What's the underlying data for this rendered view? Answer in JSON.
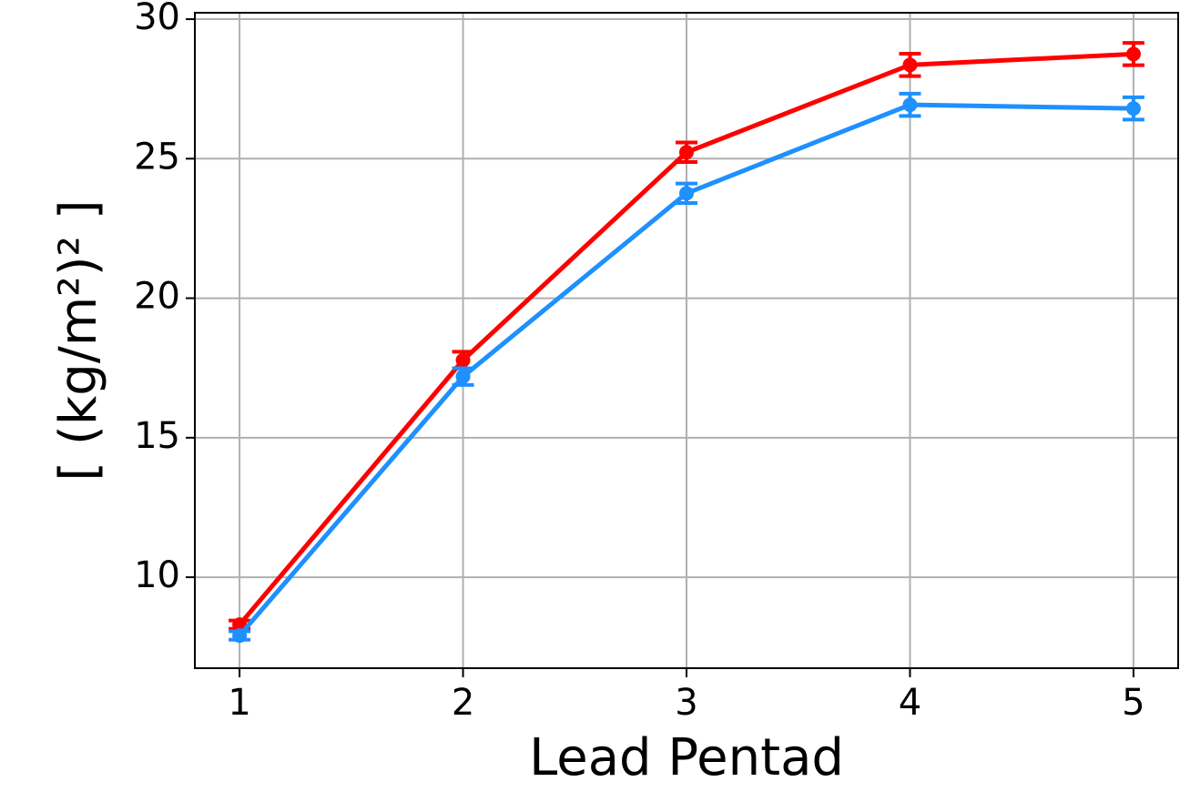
{
  "chart_data": {
    "type": "line",
    "x_label": "Lead Pentad",
    "y_label": "[ (kg/m²)² ]",
    "x": [
      1,
      2,
      3,
      4,
      5
    ],
    "series": [
      {
        "color": "#ff0000",
        "values": [
          8.3,
          17.78,
          25.23,
          28.36,
          28.75
        ],
        "errors": [
          0.15,
          0.3,
          0.35,
          0.4,
          0.4
        ]
      },
      {
        "color": "#1e90ff",
        "values": [
          7.91,
          17.19,
          23.76,
          26.93,
          26.8
        ],
        "errors": [
          0.15,
          0.3,
          0.35,
          0.4,
          0.4
        ]
      }
    ],
    "xlim": [
      0.8,
      5.2
    ],
    "xticks": [
      1,
      2,
      3,
      4,
      5
    ],
    "ylim": [
      6.74,
      30.23
    ],
    "yticks": [
      10,
      15,
      20,
      25,
      30
    ],
    "grid": true
  }
}
